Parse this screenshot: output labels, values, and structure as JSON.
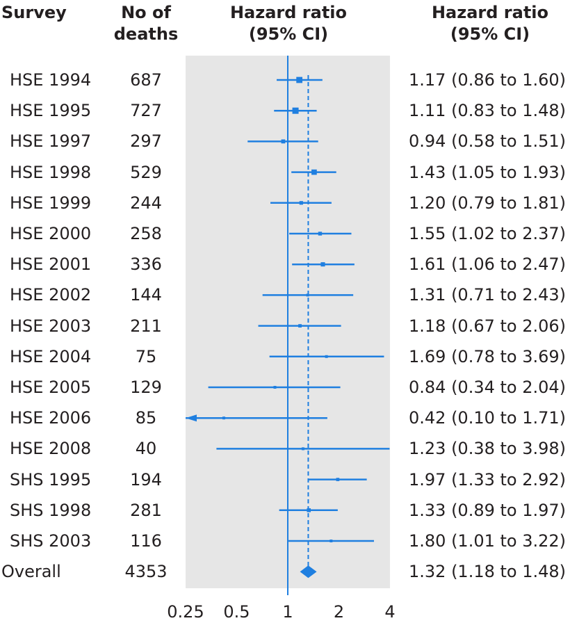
{
  "headers": {
    "survey": "Survey",
    "deaths_1": "No of",
    "deaths_2": "deaths",
    "hr_1": "Hazard ratio",
    "hr_2": "(95% CI)",
    "hrci_1": "Hazard ratio",
    "hrci_2": "(95% CI)"
  },
  "colors": {
    "marker": "#1f7fe0",
    "panel": "#e6e6e6",
    "text": "#231f20"
  },
  "chart_data": {
    "type": "forest",
    "x_scale": "log2",
    "xlim": [
      0.25,
      4
    ],
    "reference_line": 1,
    "overall_line": 1.32,
    "ticks": [
      {
        "value": 0.25,
        "label": "0.25"
      },
      {
        "value": 0.5,
        "label": "0.5"
      },
      {
        "value": 1,
        "label": "1"
      },
      {
        "value": 2,
        "label": "2"
      },
      {
        "value": 4,
        "label": "4"
      }
    ],
    "rows": [
      {
        "survey": "HSE 1994",
        "deaths": "687",
        "hr": 1.17,
        "lo": 0.86,
        "hi": 1.6,
        "label": "1.17 (0.86 to 1.60)"
      },
      {
        "survey": "HSE 1995",
        "deaths": "727",
        "hr": 1.11,
        "lo": 0.83,
        "hi": 1.48,
        "label": "1.11 (0.83 to 1.48)"
      },
      {
        "survey": "HSE 1997",
        "deaths": "297",
        "hr": 0.94,
        "lo": 0.58,
        "hi": 1.51,
        "label": "0.94 (0.58 to 1.51)"
      },
      {
        "survey": "HSE 1998",
        "deaths": "529",
        "hr": 1.43,
        "lo": 1.05,
        "hi": 1.93,
        "label": "1.43 (1.05 to 1.93)"
      },
      {
        "survey": "HSE 1999",
        "deaths": "244",
        "hr": 1.2,
        "lo": 0.79,
        "hi": 1.81,
        "label": "1.20 (0.79 to 1.81)"
      },
      {
        "survey": "HSE 2000",
        "deaths": "258",
        "hr": 1.55,
        "lo": 1.02,
        "hi": 2.37,
        "label": "1.55 (1.02 to 2.37)"
      },
      {
        "survey": "HSE 2001",
        "deaths": "336",
        "hr": 1.61,
        "lo": 1.06,
        "hi": 2.47,
        "label": "1.61 (1.06 to 2.47)"
      },
      {
        "survey": "HSE 2002",
        "deaths": "144",
        "hr": 1.31,
        "lo": 0.71,
        "hi": 2.43,
        "label": "1.31 (0.71 to 2.43)"
      },
      {
        "survey": "HSE 2003",
        "deaths": "211",
        "hr": 1.18,
        "lo": 0.67,
        "hi": 2.06,
        "label": "1.18 (0.67 to 2.06)"
      },
      {
        "survey": "HSE 2004",
        "deaths": "75",
        "hr": 1.69,
        "lo": 0.78,
        "hi": 3.69,
        "label": "1.69 (0.78 to 3.69)"
      },
      {
        "survey": "HSE 2005",
        "deaths": "129",
        "hr": 0.84,
        "lo": 0.34,
        "hi": 2.04,
        "label": "0.84 (0.34 to 2.04)"
      },
      {
        "survey": "HSE 2006",
        "deaths": "85",
        "hr": 0.42,
        "lo": 0.1,
        "hi": 1.71,
        "label": "0.42 (0.10 to 1.71)"
      },
      {
        "survey": "HSE 2008",
        "deaths": "40",
        "hr": 1.23,
        "lo": 0.38,
        "hi": 3.98,
        "label": "1.23 (0.38 to 3.98)"
      },
      {
        "survey": "SHS 1995",
        "deaths": "194",
        "hr": 1.97,
        "lo": 1.33,
        "hi": 2.92,
        "label": "1.97 (1.33 to 2.92)"
      },
      {
        "survey": "SHS 1998",
        "deaths": "281",
        "hr": 1.33,
        "lo": 0.89,
        "hi": 1.97,
        "label": "1.33 (0.89 to 1.97)"
      },
      {
        "survey": "SHS 2003",
        "deaths": "116",
        "hr": 1.8,
        "lo": 1.01,
        "hi": 3.22,
        "label": "1.80 (1.01 to 3.22)"
      }
    ],
    "overall": {
      "survey": "Overall",
      "deaths": "4353",
      "hr": 1.32,
      "lo": 1.18,
      "hi": 1.48,
      "label": "1.32 (1.18 to 1.48)"
    }
  }
}
